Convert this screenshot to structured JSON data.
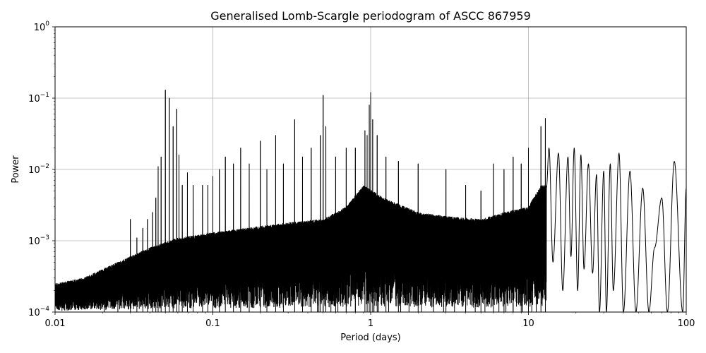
{
  "chart_data": {
    "type": "line",
    "title": "Generalised Lomb-Scargle periodogram of ASCC 867959",
    "xlabel": "Period (days)",
    "ylabel": "Power",
    "xscale": "log",
    "yscale": "log",
    "xlim": [
      0.01,
      100
    ],
    "ylim": [
      0.0001,
      1
    ],
    "grid": true,
    "line_color": "#000000",
    "x_ticks": [
      {
        "value": 0.01,
        "label": "0.01"
      },
      {
        "value": 0.1,
        "label": "0.1"
      },
      {
        "value": 1,
        "label": "1"
      },
      {
        "value": 10,
        "label": "10"
      },
      {
        "value": 100,
        "label": "100"
      }
    ],
    "y_ticks": [
      {
        "value": 0.0001,
        "base": "10",
        "exp": "−4"
      },
      {
        "value": 0.001,
        "base": "10",
        "exp": "−3"
      },
      {
        "value": 0.01,
        "base": "10",
        "exp": "−2"
      },
      {
        "value": 0.1,
        "base": "10",
        "exp": "−1"
      },
      {
        "value": 1,
        "base": "10",
        "exp": "0"
      }
    ],
    "envelope": [
      [
        0.01,
        0.00025
      ],
      [
        0.015,
        0.0003
      ],
      [
        0.02,
        0.0004
      ],
      [
        0.03,
        0.0006
      ],
      [
        0.04,
        0.0008
      ],
      [
        0.06,
        0.0011
      ],
      [
        0.1,
        0.0013
      ],
      [
        0.2,
        0.0016
      ],
      [
        0.3,
        0.0018
      ],
      [
        0.5,
        0.002
      ],
      [
        0.7,
        0.003
      ],
      [
        0.9,
        0.006
      ],
      [
        1.2,
        0.004
      ],
      [
        2,
        0.0025
      ],
      [
        3,
        0.0022
      ],
      [
        5,
        0.002
      ],
      [
        7,
        0.0025
      ],
      [
        10,
        0.003
      ],
      [
        12,
        0.006
      ],
      [
        20,
        0.006
      ],
      [
        40,
        0.004
      ],
      [
        100,
        0.004
      ]
    ],
    "spikes": [
      [
        0.0205,
        0.0004
      ],
      [
        0.025,
        0.0005
      ],
      [
        0.03,
        0.002
      ],
      [
        0.033,
        0.0011
      ],
      [
        0.036,
        0.0015
      ],
      [
        0.0385,
        0.002
      ],
      [
        0.0415,
        0.0025
      ],
      [
        0.0435,
        0.004
      ],
      [
        0.045,
        0.011
      ],
      [
        0.047,
        0.015
      ],
      [
        0.05,
        0.13
      ],
      [
        0.053,
        0.1
      ],
      [
        0.056,
        0.04
      ],
      [
        0.059,
        0.07
      ],
      [
        0.061,
        0.016
      ],
      [
        0.064,
        0.006
      ],
      [
        0.069,
        0.009
      ],
      [
        0.075,
        0.006
      ],
      [
        0.086,
        0.006
      ],
      [
        0.093,
        0.006
      ],
      [
        0.1,
        0.008
      ],
      [
        0.11,
        0.01
      ],
      [
        0.12,
        0.015
      ],
      [
        0.135,
        0.012
      ],
      [
        0.15,
        0.02
      ],
      [
        0.17,
        0.012
      ],
      [
        0.2,
        0.025
      ],
      [
        0.22,
        0.01
      ],
      [
        0.25,
        0.03
      ],
      [
        0.28,
        0.012
      ],
      [
        0.33,
        0.05
      ],
      [
        0.37,
        0.015
      ],
      [
        0.42,
        0.02
      ],
      [
        0.48,
        0.03
      ],
      [
        0.5,
        0.11
      ],
      [
        0.52,
        0.04
      ],
      [
        0.6,
        0.015
      ],
      [
        0.7,
        0.02
      ],
      [
        0.8,
        0.02
      ],
      [
        0.92,
        0.035
      ],
      [
        0.95,
        0.03
      ],
      [
        0.98,
        0.08
      ],
      [
        1.0,
        0.12
      ],
      [
        1.03,
        0.05
      ],
      [
        1.1,
        0.03
      ],
      [
        1.25,
        0.015
      ],
      [
        1.5,
        0.013
      ],
      [
        2.0,
        0.012
      ],
      [
        3.0,
        0.01
      ],
      [
        4.0,
        0.006
      ],
      [
        5.0,
        0.005
      ],
      [
        6.0,
        0.012
      ],
      [
        7.0,
        0.01
      ],
      [
        8.0,
        0.015
      ],
      [
        9.0,
        0.012
      ],
      [
        10.0,
        0.02
      ],
      [
        12.0,
        0.04
      ],
      [
        12.8,
        0.052
      ]
    ],
    "nulls": [
      [
        0.46,
        0.0001
      ],
      [
        0.47,
        0.0001
      ],
      [
        0.5,
        0.0001
      ],
      [
        0.56,
        0.0001
      ],
      [
        0.62,
        0.0001
      ],
      [
        0.7,
        0.0001
      ],
      [
        0.8,
        0.0001
      ],
      [
        0.95,
        0.0001
      ],
      [
        1.05,
        0.0001
      ],
      [
        1.12,
        0.0001
      ],
      [
        1.3,
        0.0001
      ],
      [
        1.55,
        0.0001
      ],
      [
        1.75,
        0.0001
      ],
      [
        2.1,
        0.0001
      ],
      [
        2.5,
        0.0001
      ],
      [
        2.9,
        0.0001
      ],
      [
        3.4,
        0.0001
      ],
      [
        4.0,
        0.0001
      ],
      [
        4.6,
        0.0001
      ],
      [
        5.3,
        0.0001
      ],
      [
        6.5,
        0.0001
      ],
      [
        7.2,
        0.0001
      ],
      [
        8.0,
        0.0001
      ],
      [
        9.2,
        0.0001
      ],
      [
        10.5,
        0.0001
      ],
      [
        11.2,
        0.0001
      ]
    ],
    "longperiod": [
      [
        13.5,
        0.02
      ],
      [
        14.3,
        0.0005
      ],
      [
        15.5,
        0.017
      ],
      [
        16.5,
        0.0002
      ],
      [
        17.8,
        0.015
      ],
      [
        18.6,
        0.0006
      ],
      [
        19.5,
        0.02
      ],
      [
        20.5,
        0.0002
      ],
      [
        21.5,
        0.016
      ],
      [
        22.5,
        0.0004
      ],
      [
        24.0,
        0.012
      ],
      [
        25.5,
        0.00035
      ],
      [
        27.0,
        0.0085
      ],
      [
        28.2,
        0.0001
      ],
      [
        30.0,
        0.0095
      ],
      [
        31.2,
        0.0001
      ],
      [
        33.0,
        0.012
      ],
      [
        34.5,
        0.0002
      ],
      [
        37.5,
        0.017
      ],
      [
        40.0,
        0.0001
      ],
      [
        44.0,
        0.0095
      ],
      [
        48.0,
        0.0001
      ],
      [
        53.0,
        0.0055
      ],
      [
        58.0,
        0.0001
      ],
      [
        63.0,
        0.0008
      ],
      [
        70.0,
        0.004
      ],
      [
        76.0,
        0.0001
      ],
      [
        84.0,
        0.013
      ],
      [
        95.0,
        0.0001
      ],
      [
        100.0,
        0.0055
      ]
    ]
  }
}
